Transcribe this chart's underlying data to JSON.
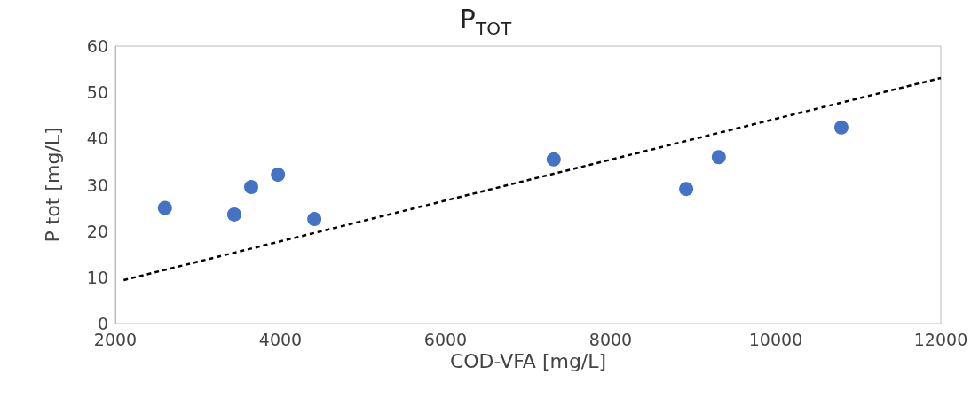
{
  "chart_data": {
    "type": "scatter",
    "title": "P$_{TOT}$",
    "xlabel": "COD-VFA [mg/L]",
    "ylabel": "P tot [mg/L]",
    "xlim": [
      2000,
      12000
    ],
    "xticks": [
      2000,
      4000,
      6000,
      8000,
      10000,
      12000
    ],
    "ylim": [
      0,
      60
    ],
    "yticks": [
      0,
      10,
      20,
      30,
      40,
      50,
      60
    ],
    "grid": false,
    "marker": "circle",
    "series": [
      {
        "color": "#4472c4",
        "x": [
          2600,
          3440,
          3645,
          3970,
          4410,
          7310,
          8915,
          9310,
          10795
        ],
        "values": [
          25,
          23.6,
          29.5,
          32.2,
          22.6,
          35.5,
          29.1,
          36,
          42.4
        ]
      },
      {
        "type": "line",
        "color": "#000000",
        "line_style": "dashed",
        "marker": "none",
        "x": [
          2100,
          12000
        ],
        "values": [
          9.4,
          53.1
        ]
      }
    ]
  }
}
